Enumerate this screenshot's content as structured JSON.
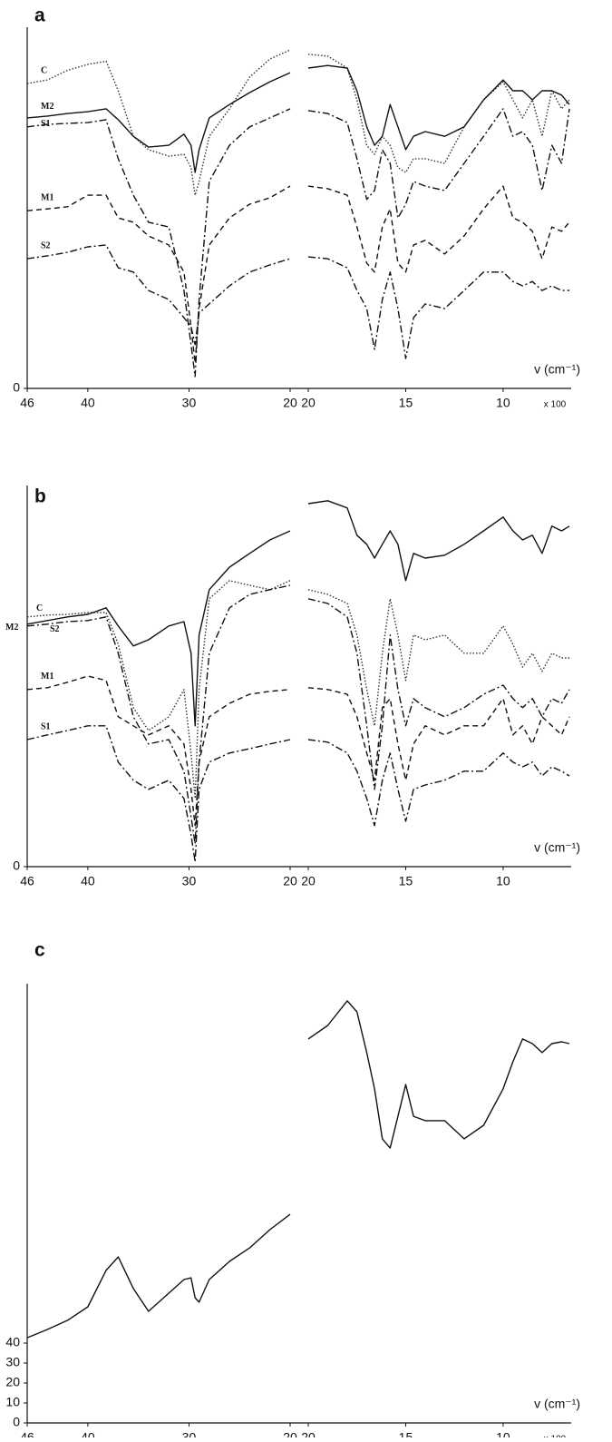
{
  "chart_data": [
    {
      "type": "line",
      "title": "a",
      "xlabel": "v (cm⁻¹)",
      "x_multiplier": "x 100",
      "ylim": [
        0,
        100
      ],
      "yticks": [
        0
      ],
      "segments": [
        {
          "xlim": [
            46,
            20
          ],
          "xticks": [
            46,
            40,
            30,
            20
          ],
          "x": [
            46,
            44,
            42,
            40,
            38.2,
            37,
            35.5,
            34,
            32,
            30.5,
            29.8,
            29.4,
            29,
            28,
            26,
            24,
            22,
            20
          ]
        },
        {
          "xlim": [
            20,
            6.6
          ],
          "xticks": [
            20,
            15,
            10
          ],
          "x": [
            20,
            19,
            18,
            17.5,
            17,
            16.6,
            16.2,
            15.8,
            15.4,
            15,
            14.6,
            14,
            13,
            12,
            11,
            10,
            9.5,
            9,
            8.5,
            8,
            7.5,
            7,
            6.6
          ]
        }
      ],
      "series": [
        {
          "name": "C",
          "dash": "dotted",
          "color": "#333333",
          "values": [
            [
              84.4,
              85.4,
              88.1,
              89.7,
              90.6,
              82.4,
              69.8,
              66.1,
              64.3,
              64.8,
              61.1,
              53.5,
              57.3,
              69.8,
              77.4,
              86.2,
              91.2,
              93.7
            ],
            [
              92.5,
              92.0,
              88.7,
              79.9,
              67.3,
              64.8,
              69.8,
              67.3,
              61.1,
              59.8,
              63.6,
              63.6,
              62.3,
              72.4,
              79.9,
              84.9,
              79.9,
              74.9,
              79.9,
              69.8,
              82.4,
              77.4,
              79.9
            ]
          ]
        },
        {
          "name": "M2",
          "dash": "solid",
          "color": "#111111",
          "values": [
            [
              74.9,
              75.4,
              76.1,
              76.6,
              77.4,
              74.4,
              69.8,
              66.8,
              67.3,
              70.4,
              67.3,
              59.8,
              66.1,
              74.9,
              78.6,
              81.9,
              84.9,
              87.4
            ],
            [
              88.7,
              89.4,
              88.7,
              82.4,
              72.4,
              67.3,
              69.8,
              78.6,
              72.4,
              66.1,
              69.8,
              71.1,
              69.8,
              72.4,
              79.9,
              85.4,
              82.4,
              82.4,
              79.9,
              82.4,
              82.4,
              81.2,
              78.6
            ]
          ]
        },
        {
          "name": "S1",
          "dash": "dashdot",
          "color": "#111111",
          "values": [
            [
              72.4,
              73.1,
              73.4,
              73.6,
              74.4,
              63.6,
              53.5,
              46.0,
              44.7,
              27.1,
              12.1,
              3.3,
              24.6,
              57.3,
              67.3,
              72.4,
              74.9,
              77.4
            ],
            [
              76.9,
              76.1,
              73.6,
              63.6,
              52.3,
              54.8,
              66.1,
              62.3,
              47.2,
              51.0,
              57.3,
              56.0,
              54.8,
              62.3,
              69.8,
              77.4,
              69.8,
              71.1,
              67.3,
              54.8,
              67.3,
              62.3,
              77.4
            ]
          ]
        },
        {
          "name": "M1",
          "dash": "dashed",
          "color": "#111111",
          "values": [
            [
              49.2,
              49.7,
              50.3,
              53.5,
              53.5,
              47.2,
              46.0,
              42.2,
              39.7,
              32.2,
              17.1,
              7.0,
              22.1,
              39.7,
              47.2,
              51.0,
              52.8,
              56.0
            ],
            [
              56.0,
              55.3,
              53.5,
              44.7,
              34.7,
              32.2,
              44.7,
              49.7,
              34.7,
              32.2,
              39.7,
              41.0,
              37.2,
              42.2,
              49.7,
              56.0,
              47.2,
              46.0,
              43.5,
              35.9,
              44.7,
              43.5,
              46.0
            ]
          ]
        },
        {
          "name": "S2",
          "dash": "dashdot",
          "color": "#111111",
          "values": [
            [
              35.9,
              36.7,
              37.7,
              39.2,
              39.7,
              33.4,
              32.2,
              27.1,
              24.6,
              19.6,
              17.1,
              12.1,
              20.9,
              23.4,
              28.4,
              32.2,
              34.2,
              35.9
            ],
            [
              36.4,
              35.9,
              33.4,
              27.1,
              22.1,
              10.8,
              24.6,
              32.2,
              22.1,
              8.3,
              19.6,
              23.4,
              22.1,
              27.1,
              32.2,
              32.2,
              29.6,
              28.4,
              29.6,
              27.1,
              28.4,
              27.1,
              27.1
            ]
          ]
        }
      ]
    },
    {
      "type": "line",
      "title": "b",
      "xlabel": "v (cm⁻¹)",
      "ylim": [
        0,
        105
      ],
      "yticks": [
        0
      ],
      "segments": [
        {
          "xlim": [
            46,
            20
          ],
          "xticks": [
            46,
            40,
            30,
            20
          ],
          "x": [
            46,
            44,
            42,
            40,
            38.2,
            37,
            35.5,
            34,
            32,
            30.5,
            29.8,
            29.4,
            29,
            28,
            26,
            24,
            22,
            20
          ]
        },
        {
          "xlim": [
            20,
            6.6
          ],
          "xticks": [
            20,
            15,
            10
          ],
          "x": [
            20,
            19,
            18,
            17.5,
            17,
            16.6,
            16.2,
            15.8,
            15.4,
            15,
            14.6,
            14,
            13,
            12,
            11,
            10,
            9.5,
            9,
            8.5,
            8,
            7.5,
            7,
            6.6
          ]
        }
      ],
      "series": [
        {
          "name": "C",
          "dash": "dotted",
          "color": "#333333",
          "values": [
            [
              68.8,
              69.3,
              69.5,
              70.0,
              70.0,
              61.3,
              43.8,
              37.5,
              41.3,
              48.8,
              31.3,
              18.8,
              48.8,
              73.8,
              78.8,
              77.5,
              76.3,
              78.8
            ],
            [
              76.3,
              75.0,
              72.5,
              63.8,
              48.8,
              38.8,
              58.8,
              73.8,
              63.8,
              51.3,
              63.8,
              62.5,
              63.8,
              58.8,
              58.8,
              66.3,
              61.3,
              55.0,
              58.8,
              53.8,
              58.8,
              57.5,
              57.5
            ]
          ]
        },
        {
          "name": "M2",
          "dash": "solid",
          "color": "#111111",
          "values": [
            [
              66.8,
              67.8,
              68.8,
              69.5,
              71.3,
              66.3,
              60.8,
              62.5,
              66.3,
              67.5,
              58.8,
              38.8,
              63.8,
              76.3,
              82.5,
              86.3,
              90.0,
              92.5
            ],
            [
              100.0,
              100.8,
              98.8,
              91.3,
              88.8,
              85.0,
              88.8,
              92.5,
              88.8,
              78.8,
              86.3,
              85.0,
              85.8,
              88.8,
              92.5,
              96.3,
              92.5,
              90.0,
              91.3,
              86.3,
              93.8,
              92.5,
              93.8
            ]
          ]
        },
        {
          "name": "S2",
          "dash": "dashdot",
          "color": "#111111",
          "values": [
            [
              66.3,
              66.8,
              67.5,
              67.8,
              68.8,
              58.8,
              41.3,
              33.8,
              35.0,
              26.3,
              13.8,
              6.3,
              28.8,
              58.8,
              71.3,
              75.0,
              76.3,
              77.5
            ],
            [
              73.8,
              72.5,
              68.8,
              58.8,
              38.8,
              21.3,
              38.8,
              63.8,
              48.8,
              38.8,
              46.3,
              43.8,
              41.3,
              43.8,
              47.5,
              50.0,
              46.3,
              43.8,
              46.3,
              41.3,
              46.3,
              45.0,
              48.8
            ]
          ]
        },
        {
          "name": "M1",
          "dash": "dashed",
          "color": "#111111",
          "values": [
            [
              48.8,
              49.3,
              50.8,
              52.5,
              51.3,
              41.3,
              38.8,
              36.3,
              38.8,
              33.8,
              21.3,
              11.3,
              28.8,
              41.3,
              45.0,
              47.5,
              48.3,
              48.8
            ],
            [
              49.3,
              48.8,
              47.5,
              41.3,
              31.3,
              23.8,
              43.8,
              46.3,
              33.8,
              23.8,
              33.8,
              38.8,
              36.3,
              38.8,
              38.8,
              46.3,
              36.3,
              38.8,
              33.8,
              41.3,
              38.8,
              36.3,
              41.3
            ]
          ]
        },
        {
          "name": "S1",
          "dash": "dashdot",
          "color": "#111111",
          "values": [
            [
              35.0,
              36.3,
              37.5,
              38.8,
              38.8,
              28.8,
              23.8,
              21.3,
              23.8,
              18.8,
              8.8,
              1.3,
              21.3,
              28.8,
              31.3,
              32.5,
              33.8,
              35.0
            ],
            [
              35.0,
              34.3,
              31.3,
              26.3,
              18.8,
              11.3,
              23.8,
              31.3,
              21.3,
              12.5,
              21.3,
              22.5,
              23.8,
              26.3,
              26.3,
              31.3,
              28.8,
              27.5,
              28.8,
              25.0,
              27.5,
              26.3,
              25.0
            ]
          ]
        }
      ]
    },
    {
      "type": "line",
      "title": "c",
      "xlabel": "v (cm⁻¹)",
      "x_multiplier": "x 100",
      "ylim": [
        0,
        220
      ],
      "yticks": [
        0,
        10,
        20,
        30,
        40
      ],
      "segments": [
        {
          "xlim": [
            46,
            20
          ],
          "xticks": [
            46,
            40,
            30,
            20
          ],
          "x": [
            46,
            44,
            42,
            40,
            38.2,
            37,
            35.5,
            34,
            32,
            30.5,
            29.8,
            29.4,
            29,
            28,
            26,
            24,
            22,
            20
          ]
        },
        {
          "xlim": [
            20,
            6.6
          ],
          "xticks": [
            20,
            15,
            10
          ],
          "x": [
            20,
            19,
            18,
            17.5,
            17,
            16.6,
            16.2,
            15.8,
            15.4,
            15,
            14.6,
            14,
            13,
            12,
            11,
            10,
            9.5,
            9,
            8.5,
            8,
            7.5,
            7,
            6.6
          ]
        }
      ],
      "series": [
        {
          "dash": "solid",
          "color": "#111111",
          "values": [
            [
              42.7,
              46.8,
              51.4,
              58.2,
              76.4,
              83.2,
              67.3,
              55.9,
              65.0,
              71.8,
              72.7,
              62.7,
              60.5,
              71.8,
              80.9,
              87.7,
              96.8,
              104.5
            ],
            [
              192.3,
              199.1,
              211.4,
              205.9,
              185.5,
              167.3,
              142.3,
              137.7,
              153.6,
              169.5,
              153.6,
              151.4,
              151.4,
              142.3,
              149.1,
              167.3,
              180.9,
              192.3,
              190.0,
              185.5,
              190.0,
              190.9,
              190.0
            ]
          ]
        }
      ]
    }
  ]
}
